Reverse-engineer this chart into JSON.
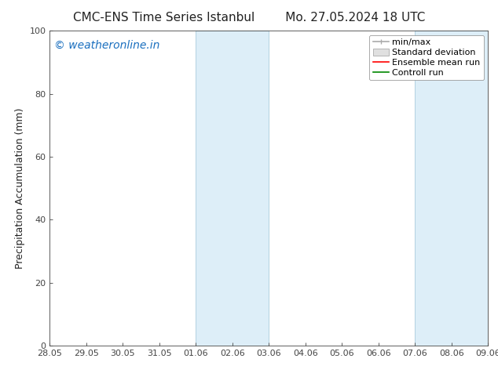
{
  "title_left": "CMC-ENS Time Series Istanbul",
  "title_right": "Mo. 27.05.2024 18 UTC",
  "ylabel": "Precipitation Accumulation (mm)",
  "ylim": [
    0,
    100
  ],
  "yticks": [
    0,
    20,
    40,
    60,
    80,
    100
  ],
  "xtick_labels": [
    "28.05",
    "29.05",
    "30.05",
    "31.05",
    "01.06",
    "02.06",
    "03.06",
    "04.06",
    "05.06",
    "06.06",
    "07.06",
    "08.06",
    "09.06"
  ],
  "shaded_regions": [
    {
      "xstart": 4,
      "xend": 6
    },
    {
      "xstart": 10,
      "xend": 12
    }
  ],
  "shaded_color": "#ddeef8",
  "shaded_edge_color": "#aaccdd",
  "watermark_text": "© weatheronline.in",
  "watermark_color": "#1a6fbf",
  "legend_entries": [
    {
      "label": "min/max"
    },
    {
      "label": "Standard deviation"
    },
    {
      "label": "Ensemble mean run"
    },
    {
      "label": "Controll run"
    }
  ],
  "legend_line_colors": [
    "#aaaaaa",
    "#cccccc",
    "#ff0000",
    "#00aa00"
  ],
  "title_fontsize": 11,
  "axis_fontsize": 9,
  "tick_fontsize": 8,
  "legend_fontsize": 8,
  "watermark_fontsize": 10,
  "background_color": "#ffffff",
  "plot_bg_color": "#ffffff",
  "spine_color": "#444444",
  "tick_color": "#444444"
}
